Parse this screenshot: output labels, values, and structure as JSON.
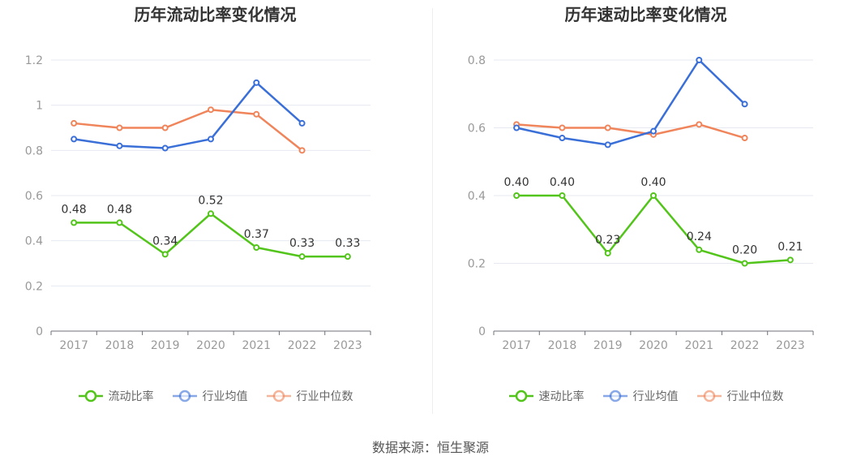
{
  "source_text": "数据来源：恒生聚源",
  "chart_data": [
    {
      "type": "line",
      "title": "历年流动比率变化情况",
      "categories": [
        "2017",
        "2018",
        "2019",
        "2020",
        "2021",
        "2022",
        "2023"
      ],
      "ylim": [
        0,
        1.2
      ],
      "yticks": [
        "0",
        "0.2",
        "0.4",
        "0.6",
        "0.8",
        "1",
        "1.2"
      ],
      "ytick_values": [
        0,
        0.2,
        0.4,
        0.6,
        0.8,
        1.0,
        1.2
      ],
      "grid": true,
      "legend": "bottom",
      "series": [
        {
          "name": "流动比率",
          "color": "#52c41a",
          "show_labels": true,
          "labels": [
            "0.48",
            "0.48",
            "0.34",
            "0.52",
            "0.37",
            "0.33",
            "0.33"
          ],
          "values": [
            0.48,
            0.48,
            0.34,
            0.52,
            0.37,
            0.33,
            0.33
          ]
        },
        {
          "name": "行业均值",
          "color": "#3a6fd8",
          "show_labels": false,
          "values": [
            0.85,
            0.82,
            0.81,
            0.85,
            1.1,
            0.92,
            null
          ]
        },
        {
          "name": "行业中位数",
          "color": "#f0845a",
          "show_labels": false,
          "values": [
            0.92,
            0.9,
            0.9,
            0.98,
            0.96,
            0.8,
            null
          ]
        }
      ]
    },
    {
      "type": "line",
      "title": "历年速动比率变化情况",
      "categories": [
        "2017",
        "2018",
        "2019",
        "2020",
        "2021",
        "2022",
        "2023"
      ],
      "ylim": [
        0,
        0.8
      ],
      "yticks": [
        "0",
        "0.2",
        "0.4",
        "0.6",
        "0.8"
      ],
      "ytick_values": [
        0,
        0.2,
        0.4,
        0.6,
        0.8
      ],
      "grid": true,
      "legend": "bottom",
      "series": [
        {
          "name": "速动比率",
          "color": "#52c41a",
          "show_labels": true,
          "labels": [
            "0.40",
            "0.40",
            "0.23",
            "0.40",
            "0.24",
            "0.20",
            "0.21"
          ],
          "values": [
            0.4,
            0.4,
            0.23,
            0.4,
            0.24,
            0.2,
            0.21
          ]
        },
        {
          "name": "行业均值",
          "color": "#3a6fd8",
          "show_labels": false,
          "values": [
            0.6,
            0.57,
            0.55,
            0.59,
            0.8,
            0.67,
            null
          ]
        },
        {
          "name": "行业中位数",
          "color": "#f0845a",
          "show_labels": false,
          "values": [
            0.61,
            0.6,
            0.6,
            0.58,
            0.61,
            0.57,
            null
          ]
        }
      ]
    }
  ]
}
